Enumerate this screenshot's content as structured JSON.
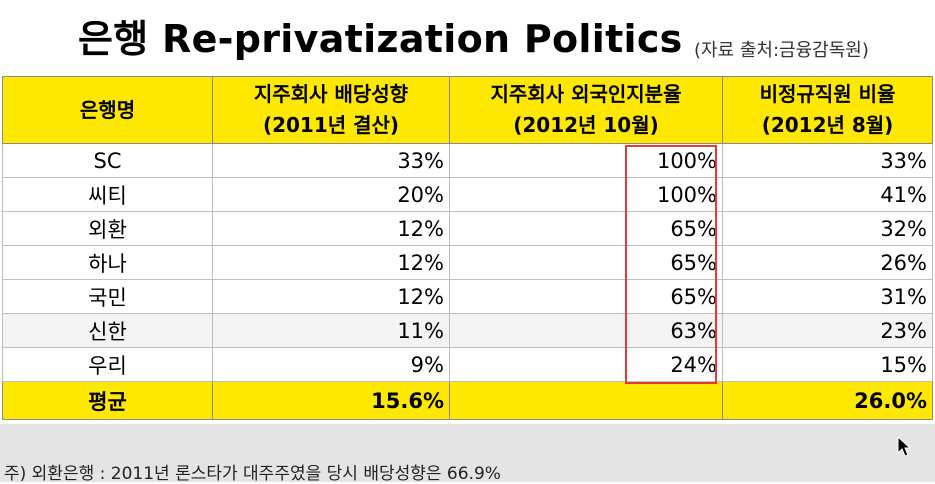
{
  "title": "은행 Re-privatization Politics",
  "source": "(자료 출처:금융감독원)",
  "table": {
    "headers": [
      {
        "line1": "은행명",
        "line2": ""
      },
      {
        "line1": "지주회사 배당성향",
        "line2": "(2011년 결산)"
      },
      {
        "line1": "지주회사 외국인지분율",
        "line2": "(2012년 10월)"
      },
      {
        "line1": "비정규직원 비율",
        "line2": "(2012년 8월)"
      }
    ],
    "rows": [
      {
        "bank": "SC",
        "dividend": "33%",
        "foreign": "100%",
        "nonregular": "33%"
      },
      {
        "bank": "씨티",
        "dividend": "20%",
        "foreign": "100%",
        "nonregular": "41%"
      },
      {
        "bank": "외환",
        "dividend": "12%",
        "foreign": "65%",
        "nonregular": "32%"
      },
      {
        "bank": "하나",
        "dividend": "12%",
        "foreign": "65%",
        "nonregular": "26%"
      },
      {
        "bank": "국민",
        "dividend": "12%",
        "foreign": "65%",
        "nonregular": "31%"
      },
      {
        "bank": "신한",
        "dividend": "11%",
        "foreign": "63%",
        "nonregular": "23%"
      },
      {
        "bank": "우리",
        "dividend": "9%",
        "foreign": "24%",
        "nonregular": "15%"
      }
    ],
    "average": {
      "label": "평균",
      "dividend": "15.6%",
      "foreign": "",
      "nonregular": "26.0%"
    }
  },
  "footnote": "주) 외환은행 : 2011년 론스타가 대주주였을 당시 배당성향은 66.9%",
  "colors": {
    "header_bg": "#ffe800",
    "highlight_border": "#e53935",
    "footer_bg": "#e4e4e4"
  },
  "icons": {
    "cursor": "mouse-cursor-icon"
  }
}
